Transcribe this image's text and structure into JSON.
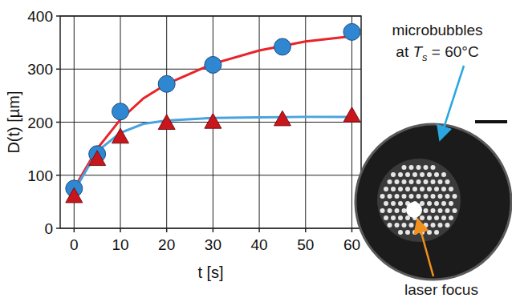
{
  "chart_data": {
    "type": "scatter",
    "x_label": "t [s]",
    "y_label": "D(t) [µm]",
    "xlim": [
      -3,
      62
    ],
    "ylim": [
      0,
      400
    ],
    "xticks": [
      0,
      10,
      20,
      30,
      40,
      50,
      60
    ],
    "yticks": [
      0,
      100,
      200,
      300,
      400
    ],
    "grid": true,
    "series": [
      {
        "type": "scatter",
        "marker": "circle",
        "color": "#2f86d1",
        "x": [
          0,
          5,
          10,
          20,
          30,
          45,
          60
        ],
        "values": [
          75,
          140,
          220,
          272,
          308,
          342,
          370
        ]
      },
      {
        "type": "scatter",
        "marker": "triangle",
        "color": "#c8161d",
        "x": [
          0,
          5,
          10,
          20,
          30,
          45,
          60
        ],
        "values": [
          60,
          130,
          172,
          198,
          200,
          205,
          212
        ]
      },
      {
        "type": "line",
        "line_style": "solid",
        "color": "#e8242a",
        "x": [
          0,
          5,
          10,
          15,
          20,
          30,
          40,
          50,
          60
        ],
        "values": [
          75,
          150,
          205,
          245,
          272,
          310,
          335,
          352,
          362
        ]
      },
      {
        "type": "line",
        "line_style": "solid",
        "color": "#4aa3df",
        "x": [
          0,
          5,
          10,
          15,
          20,
          30,
          40,
          50,
          60
        ],
        "values": [
          70,
          145,
          180,
          197,
          203,
          208,
          209,
          210,
          210
        ]
      }
    ],
    "annotations": [
      {
        "text": "microbubbles",
        "color": "#1a1a1a"
      },
      {
        "text_before": "at ",
        "variable": "T",
        "subscript": "s",
        "text_after": " = 60°C",
        "color": "#1a1a1a"
      },
      {
        "text": "laser focus",
        "color": "#1a1a1a"
      }
    ]
  }
}
